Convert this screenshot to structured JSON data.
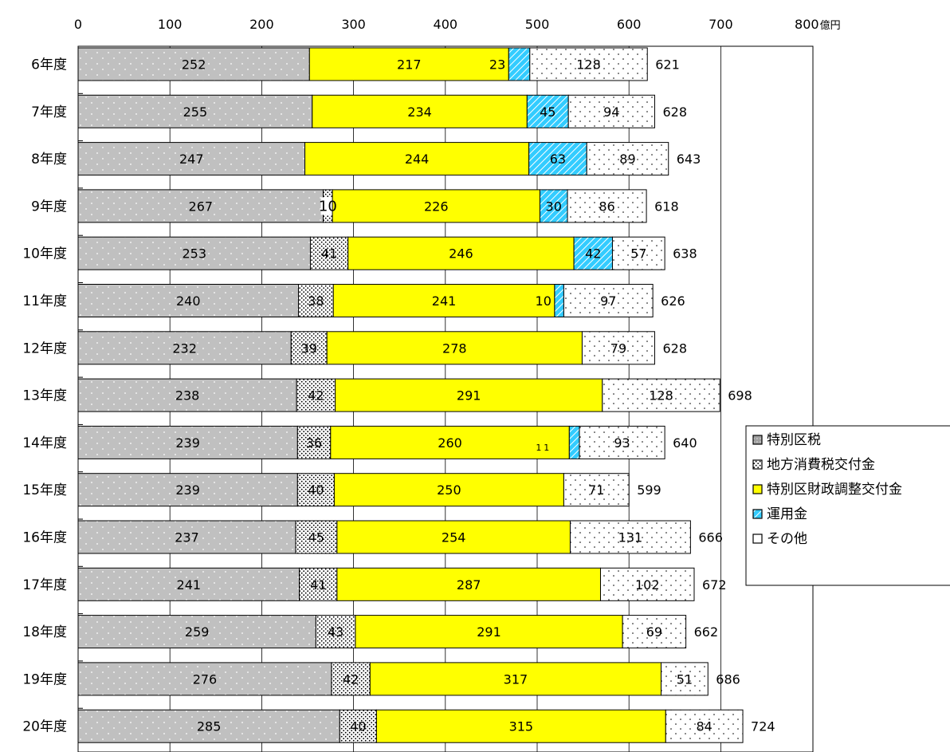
{
  "chart_data": {
    "type": "bar",
    "orientation": "horizontal",
    "stacked": true,
    "title": "",
    "xlabel": "",
    "ylabel": "",
    "unit": "億円",
    "xlim": [
      0,
      800
    ],
    "xticks": [
      "0",
      "100",
      "200",
      "300",
      "400",
      "500",
      "600",
      "700",
      "800"
    ],
    "grid": true,
    "legend_position": "right",
    "categories": [
      "6年度",
      "7年度",
      "8年度",
      "9年度",
      "10年度",
      "11年度",
      "12年度",
      "13年度",
      "14年度",
      "15年度",
      "16年度",
      "17年度",
      "18年度",
      "19年度",
      "20年度"
    ],
    "series": [
      {
        "name": "特別区税",
        "color": "#c0c0c0",
        "pattern": "dots-light",
        "values": [
          252,
          255,
          247,
          267,
          253,
          240,
          232,
          238,
          239,
          239,
          237,
          241,
          259,
          276,
          285
        ]
      },
      {
        "name": "地方消費税交付金",
        "color": "#ffffff",
        "pattern": "dots-dense",
        "values": [
          0,
          0,
          0,
          10,
          41,
          38,
          39,
          42,
          36,
          40,
          45,
          41,
          43,
          42,
          40
        ]
      },
      {
        "name": "特別区財政調整交付金",
        "color": "#ffff00",
        "pattern": "solid",
        "values": [
          217,
          234,
          244,
          226,
          246,
          241,
          278,
          291,
          260,
          250,
          254,
          287,
          291,
          317,
          315
        ]
      },
      {
        "name": "運用金",
        "color": "#33ccff",
        "pattern": "diagonal",
        "values": [
          23,
          45,
          63,
          30,
          42,
          10,
          0,
          0,
          11,
          0,
          0,
          0,
          0,
          0,
          0
        ]
      },
      {
        "name": "その他",
        "color": "#ffffff",
        "pattern": "dots-sparse",
        "values": [
          128,
          94,
          89,
          86,
          57,
          97,
          79,
          128,
          93,
          71,
          131,
          102,
          69,
          51,
          84
        ]
      }
    ],
    "totals": [
      621,
      628,
      643,
      618,
      638,
      626,
      628,
      698,
      640,
      599,
      666,
      672,
      662,
      686,
      724
    ]
  }
}
